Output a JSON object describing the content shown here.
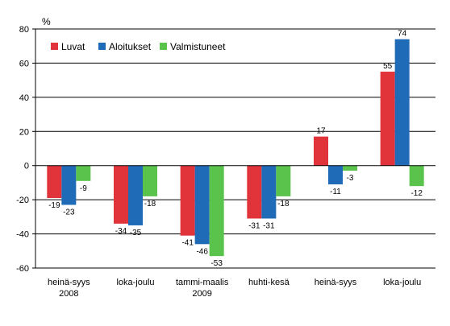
{
  "chart_data": {
    "type": "bar",
    "unit": "%",
    "ylim": [
      -60,
      80
    ],
    "yticks": [
      -60,
      -40,
      -20,
      0,
      20,
      40,
      60,
      80
    ],
    "grid": true,
    "legend_position": "top-left",
    "categories": [
      [
        "heinä-syys",
        "2008"
      ],
      [
        "loka-joulu"
      ],
      [
        "tammi-maalis",
        "2009"
      ],
      [
        "huhti-kesä"
      ],
      [
        "heinä-syys"
      ],
      [
        "loka-joulu"
      ]
    ],
    "series": [
      {
        "name": "Luvat",
        "color": "#e0333a",
        "values": [
          -19,
          -34,
          -41,
          -31,
          17,
          55
        ]
      },
      {
        "name": "Aloitukset",
        "color": "#1f6bb8",
        "values": [
          -23,
          -35,
          -46,
          -31,
          -11,
          74
        ]
      },
      {
        "name": "Valmistuneet",
        "color": "#5ac34c",
        "values": [
          -9,
          -18,
          -53,
          -18,
          -3,
          -12
        ]
      }
    ]
  }
}
